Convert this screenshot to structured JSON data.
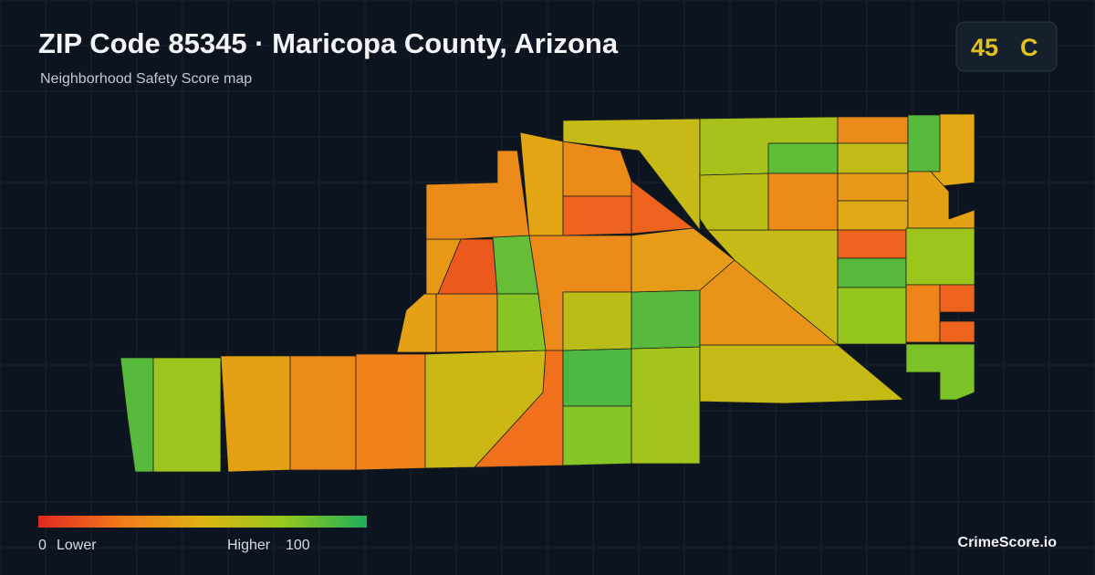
{
  "header": {
    "title": "ZIP Code 85345 · Maricopa County, Arizona",
    "subtitle": "Neighborhood Safety Score map"
  },
  "badge": {
    "score": 45,
    "grade": "C"
  },
  "legend": {
    "min": 0,
    "min_label": "Lower",
    "max_label": "Higher",
    "max": 100,
    "colors": [
      "#e0281e",
      "#f27a1c",
      "#deb312",
      "#93c81e",
      "#1fae5a"
    ]
  },
  "map": {
    "scores": [
      88,
      72,
      42,
      32,
      28,
      56,
      22,
      90,
      78,
      70,
      58,
      42,
      33,
      38,
      15,
      85,
      78,
      32,
      62,
      88,
      40,
      36,
      58,
      32,
      44,
      32,
      18,
      18,
      58,
      68,
      62,
      86,
      32,
      32,
      60,
      88,
      45,
      38,
      46,
      42,
      18,
      88,
      72,
      74,
      30,
      18,
      18,
      80
    ]
  },
  "brand": "CrimeScore.io"
}
